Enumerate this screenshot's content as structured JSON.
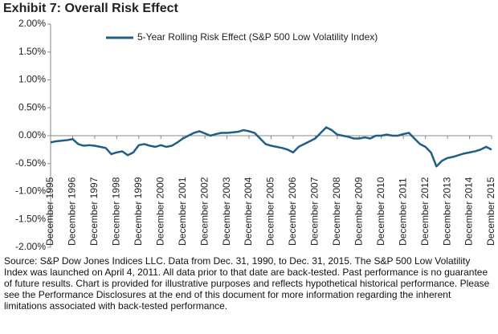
{
  "chart_data": {
    "type": "line",
    "title": "Exhibit 7: Overall Risk Effect",
    "categories": [
      "December 1995",
      null,
      null,
      null,
      "December 1996",
      null,
      null,
      null,
      "December 1997",
      null,
      null,
      null,
      "December 1998",
      null,
      null,
      null,
      "December 1999",
      null,
      null,
      null,
      "December 2000",
      null,
      null,
      null,
      "December 2001",
      null,
      null,
      null,
      "December 2002",
      null,
      null,
      null,
      "December 2003",
      null,
      null,
      null,
      "December 2004",
      null,
      null,
      null,
      "December 2005",
      null,
      null,
      null,
      "December 2006",
      null,
      null,
      null,
      "December 2007",
      null,
      null,
      null,
      "December 2008",
      null,
      null,
      null,
      "December 2009",
      null,
      null,
      null,
      "December 2010",
      null,
      null,
      null,
      "December 2011",
      null,
      null,
      null,
      "December 2012",
      null,
      null,
      null,
      "December 2013",
      null,
      null,
      null,
      "December 2014",
      null,
      null,
      null,
      "December 2015"
    ],
    "series": [
      {
        "name": "5-Year Rolling Risk Effect (S&P 500 Low Volatility Index)",
        "color": "#1f5f86",
        "values": [
          -0.12,
          -0.1,
          -0.09,
          -0.08,
          -0.06,
          -0.15,
          -0.18,
          -0.17,
          -0.18,
          -0.2,
          -0.22,
          -0.33,
          -0.3,
          -0.28,
          -0.35,
          -0.3,
          -0.17,
          -0.15,
          -0.18,
          -0.2,
          -0.17,
          -0.2,
          -0.18,
          -0.12,
          -0.05,
          0.0,
          0.05,
          0.08,
          0.04,
          0.0,
          0.03,
          0.05,
          0.05,
          0.06,
          0.07,
          0.1,
          0.08,
          0.05,
          -0.05,
          -0.15,
          -0.18,
          -0.2,
          -0.22,
          -0.25,
          -0.3,
          -0.2,
          -0.15,
          -0.1,
          -0.05,
          0.05,
          0.15,
          0.1,
          0.02,
          0.0,
          -0.02,
          -0.05,
          -0.05,
          -0.03,
          -0.05,
          0.0,
          0.0,
          0.02,
          0.0,
          0.0,
          0.03,
          0.05,
          -0.05,
          -0.15,
          -0.2,
          -0.3,
          -0.55,
          -0.45,
          -0.4,
          -0.38,
          -0.35,
          -0.32,
          -0.3,
          -0.28,
          -0.25,
          -0.2,
          -0.25
        ]
      }
    ],
    "ylim": [
      -2,
      2
    ],
    "yticks": [
      {
        "value": -2,
        "label": "-2.00%"
      },
      {
        "value": -1.5,
        "label": "-1.50%"
      },
      {
        "value": -1,
        "label": "-1.00%"
      },
      {
        "value": -0.5,
        "label": "-0.50%"
      },
      {
        "value": 0,
        "label": "0.00%"
      },
      {
        "value": 0.5,
        "label": "0.50%"
      },
      {
        "value": 1,
        "label": "1.00%"
      },
      {
        "value": 1.5,
        "label": "1.50%"
      },
      {
        "value": 2,
        "label": "2.00%"
      }
    ],
    "grid": false,
    "source": "Source: S&P Dow Jones Indices LLC.  Data from Dec. 31, 1990, to Dec. 31, 2015.  The S&P 500 Low Volatility Index was launched on April 4, 2011.  All data prior to that date are back-tested.  Past performance is no guarantee of future results.  Chart is provided for illustrative purposes and reflects hypothetical historical performance.  Please see the Performance Disclosures at the end of this document for more information regarding the inherent limitations associated with back-tested performance."
  }
}
